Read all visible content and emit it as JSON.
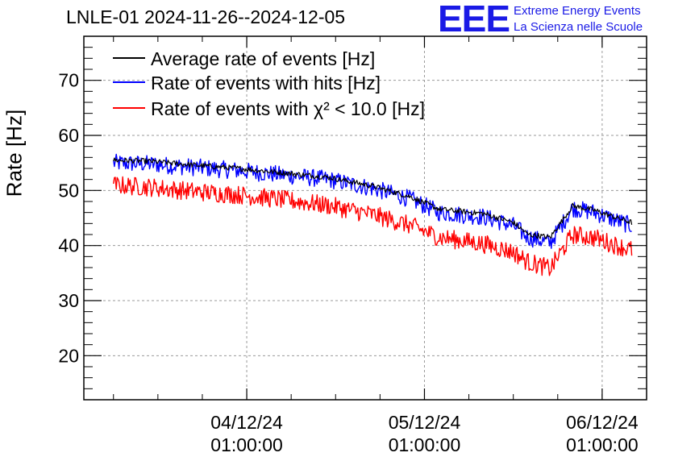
{
  "header": {
    "title": "LNLE-01 2024-11-26--2024-12-05"
  },
  "logo": {
    "mark": "EEE",
    "line1": "Extreme Energy Events",
    "line2": "La Scienza nelle Scuole"
  },
  "colors": {
    "average": "#000000",
    "hits": "#0000ff",
    "chi2": "#ff0000",
    "logo": "#1a1ae6",
    "grid": "#9a9a9a"
  },
  "chart_data": {
    "type": "line",
    "title": "LNLE-01 2024-11-26--2024-12-05",
    "ylabel": "Rate [Hz]",
    "xlabel": "",
    "ylim": [
      12,
      78
    ],
    "xlim": [
      "2024-12-03 03:00",
      "2024-12-06 07:00"
    ],
    "yticks": [
      20,
      30,
      40,
      50,
      60,
      70
    ],
    "xticks": [
      {
        "value": "2024-12-04 01:00",
        "label_date": "04/12/24",
        "label_time": "01:00:00"
      },
      {
        "value": "2024-12-05 01:00",
        "label_date": "05/12/24",
        "label_time": "01:00:00"
      },
      {
        "value": "2024-12-06 01:00",
        "label_date": "06/12/24",
        "label_time": "01:00:00"
      }
    ],
    "grid": true,
    "legend_position": "top-left",
    "series": [
      {
        "name": "Average rate of events [Hz]",
        "color": "#000000",
        "x": [
          "2024-12-03 07:00",
          "2024-12-03 12:00",
          "2024-12-03 18:00",
          "2024-12-04 00:00",
          "2024-12-04 06:00",
          "2024-12-04 12:00",
          "2024-12-04 18:00",
          "2024-12-04 23:00",
          "2024-12-05 03:00",
          "2024-12-05 09:00",
          "2024-12-05 13:00",
          "2024-12-05 15:00",
          "2024-12-05 18:00",
          "2024-12-05 21:00",
          "2024-12-06 00:00",
          "2024-12-06 03:00",
          "2024-12-06 05:00"
        ],
        "y": [
          55.5,
          55.3,
          54.6,
          54.0,
          53.2,
          52.4,
          50.8,
          48.9,
          46.6,
          45.8,
          44.2,
          42.0,
          41.5,
          47.2,
          46.4,
          45.0,
          44.2
        ]
      },
      {
        "name": "Rate of events with hits [Hz]",
        "color": "#0000ff",
        "x": [
          "2024-12-03 07:00",
          "2024-12-03 12:00",
          "2024-12-03 18:00",
          "2024-12-04 00:00",
          "2024-12-04 06:00",
          "2024-12-04 12:00",
          "2024-12-04 18:00",
          "2024-12-04 23:00",
          "2024-12-05 03:00",
          "2024-12-05 09:00",
          "2024-12-05 13:00",
          "2024-12-05 15:00",
          "2024-12-05 18:00",
          "2024-12-05 21:00",
          "2024-12-06 00:00",
          "2024-12-06 03:00",
          "2024-12-06 05:00"
        ],
        "y": [
          55.0,
          54.8,
          54.2,
          53.6,
          52.8,
          52.0,
          50.4,
          48.5,
          46.0,
          45.2,
          43.6,
          41.5,
          40.5,
          46.8,
          46.0,
          44.5,
          43.6
        ]
      },
      {
        "name": "Rate of events with χ² < 10.0 [Hz]",
        "color": "#ff0000",
        "x": [
          "2024-12-03 07:00",
          "2024-12-03 12:00",
          "2024-12-03 18:00",
          "2024-12-04 00:00",
          "2024-12-04 06:00",
          "2024-12-04 12:00",
          "2024-12-04 18:00",
          "2024-12-04 23:00",
          "2024-12-05 03:00",
          "2024-12-05 09:00",
          "2024-12-05 13:00",
          "2024-12-05 15:00",
          "2024-12-05 18:00",
          "2024-12-05 21:00",
          "2024-12-06 00:00",
          "2024-12-06 03:00",
          "2024-12-06 05:00"
        ],
        "y": [
          51.0,
          50.6,
          49.8,
          49.2,
          48.3,
          47.3,
          45.6,
          43.7,
          41.5,
          40.3,
          38.8,
          37.0,
          35.8,
          42.0,
          41.4,
          40.0,
          39.2
        ]
      }
    ]
  }
}
